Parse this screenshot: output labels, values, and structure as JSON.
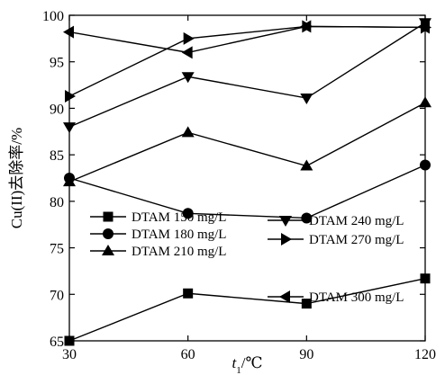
{
  "chart_data": {
    "type": "line",
    "title": "",
    "xlabel": "t",
    "xlabel_sub": "1",
    "xlabel_unit": "/℃",
    "ylabel": "Cu(II)去除率/%",
    "x": [
      30,
      60,
      90,
      120
    ],
    "xlim": [
      30,
      120
    ],
    "ylim": [
      65,
      100
    ],
    "xticks": [
      "30",
      "60",
      "90",
      "120"
    ],
    "yticks": [
      "65",
      "70",
      "75",
      "80",
      "85",
      "90",
      "95",
      "100"
    ],
    "grid": false,
    "series": [
      {
        "name": "DTAM 150 mg/L",
        "marker": "square",
        "values": [
          65.0,
          70.1,
          69.0,
          71.7
        ]
      },
      {
        "name": "DTAM 180 mg/L",
        "marker": "circle",
        "values": [
          82.5,
          78.7,
          78.2,
          83.9
        ]
      },
      {
        "name": "DTAM 210 mg/L",
        "marker": "triangle-up",
        "values": [
          82.1,
          87.4,
          83.8,
          90.6
        ]
      },
      {
        "name": "DTAM 240 mg/L",
        "marker": "triangle-down",
        "values": [
          88.0,
          93.4,
          91.1,
          99.2
        ]
      },
      {
        "name": "DTAM 270 mg/L",
        "marker": "triangle-right",
        "values": [
          91.3,
          97.5,
          98.8,
          98.7
        ]
      },
      {
        "name": "DTAM 300 mg/L",
        "marker": "triangle-left",
        "values": [
          98.2,
          96.0,
          98.8,
          98.7
        ]
      }
    ]
  }
}
